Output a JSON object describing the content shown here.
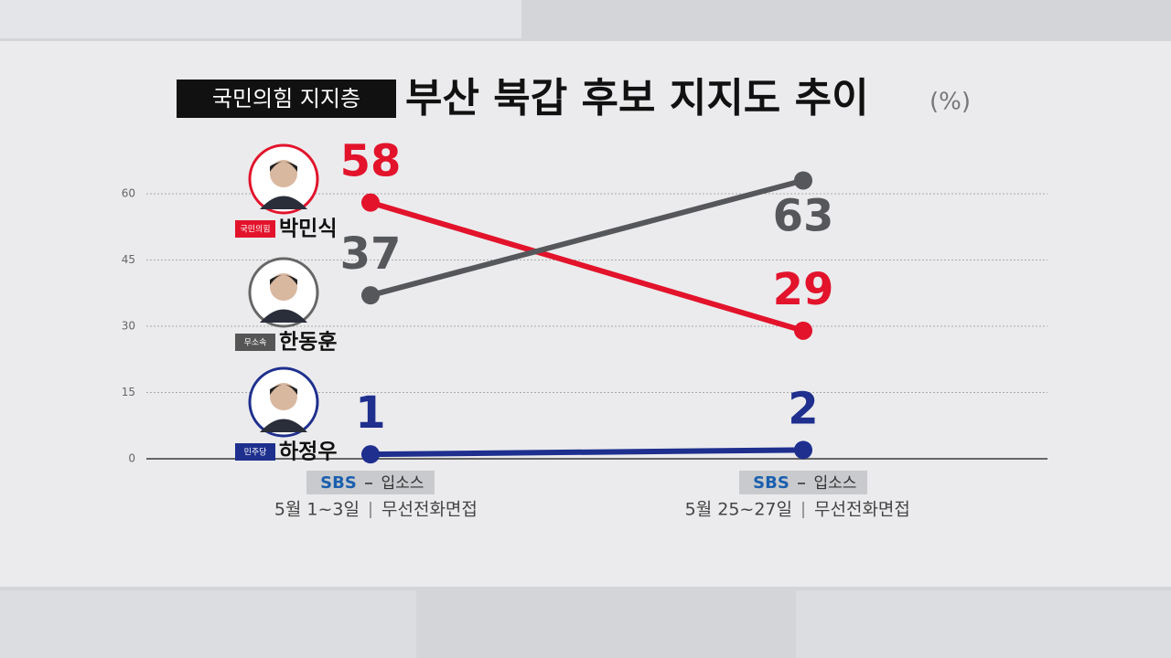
{
  "chart_data": {
    "type": "line",
    "title": "부산 북갑 후보 지지도 추이",
    "tag": "국민의힘 지지층",
    "unit": "(%)",
    "categories": [
      "5월 1~3일",
      "5월 25~27일"
    ],
    "polls": [
      {
        "broadcaster": "SBS",
        "pollster": "입소스",
        "method": "무선전화면접"
      },
      {
        "broadcaster": "SBS",
        "pollster": "입소스",
        "method": "무선전화면접"
      }
    ],
    "series": [
      {
        "name": "박민식",
        "party": "국민의힘",
        "color": "#e2132b",
        "values": [
          58,
          29
        ]
      },
      {
        "name": "한동훈",
        "party": "무소속",
        "color": "#56575b",
        "values": [
          37,
          63
        ]
      },
      {
        "name": "하정우",
        "party": "민주당",
        "color": "#1e2f8e",
        "values": [
          1,
          2
        ]
      }
    ],
    "ylim": [
      0,
      60
    ],
    "yticks": [
      0,
      15,
      30,
      45,
      60
    ],
    "grid": true
  }
}
